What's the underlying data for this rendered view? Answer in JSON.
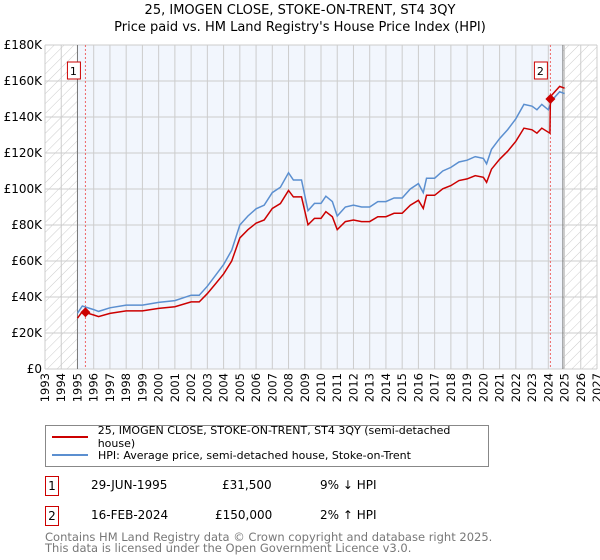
{
  "chart_data": {
    "type": "line",
    "title": "25, IMOGEN CLOSE, STOKE-ON-TRENT, ST4 3QY",
    "subtitle": "Price paid vs. HM Land Registry's House Price Index (HPI)",
    "xlim": [
      1993,
      2027
    ],
    "ylim": [
      0,
      180000
    ],
    "x_ticks": [
      "1993",
      "1994",
      "1995",
      "1996",
      "1997",
      "1998",
      "1999",
      "2000",
      "2001",
      "2002",
      "2003",
      "2004",
      "2005",
      "2006",
      "2007",
      "2008",
      "2009",
      "2010",
      "2011",
      "2012",
      "2013",
      "2014",
      "2015",
      "2016",
      "2017",
      "2018",
      "2019",
      "2020",
      "2021",
      "2022",
      "2023",
      "2024",
      "2025",
      "2026",
      "2027"
    ],
    "y_ticks": [
      "£0",
      "£20K",
      "£40K",
      "£60K",
      "£80K",
      "£100K",
      "£120K",
      "£140K",
      "£160K",
      "£180K"
    ],
    "data_range": [
      1995.0,
      2024.9
    ],
    "series": [
      {
        "name": "25, IMOGEN CLOSE, STOKE-ON-TRENT, ST4 3QY (semi-detached house)",
        "color": "#cc0000",
        "x": [
          1995.0,
          1995.3,
          1996.0,
          1996.3,
          1997,
          1998,
          1999,
          2000,
          2001,
          2002,
          2002.5,
          2003,
          2003.5,
          2004,
          2004.5,
          2005,
          2005.5,
          2006,
          2006.5,
          2007,
          2007.5,
          2008,
          2008.3,
          2008.8,
          2009.2,
          2009.6,
          2010,
          2010.3,
          2010.7,
          2011,
          2011.5,
          2012,
          2012.5,
          2013,
          2013.5,
          2014,
          2014.5,
          2015,
          2015.5,
          2016,
          2016.3,
          2016.5,
          2017,
          2017.5,
          2018,
          2018.5,
          2019,
          2019.5,
          2020,
          2020.2,
          2020.5,
          2021,
          2021.5,
          2022,
          2022.5,
          2023,
          2023.3,
          2023.6,
          2024.1,
          2024.13,
          2024.2,
          2024.7,
          2025
        ],
        "y": [
          28.2,
          31.9,
          30,
          29.1,
          30.9,
          32.3,
          32.3,
          33.7,
          34.6,
          37.3,
          37.3,
          41.9,
          47.3,
          52.8,
          60,
          72.8,
          77.4,
          81,
          82.8,
          89.2,
          91.9,
          99.2,
          95.6,
          95.6,
          80.1,
          83.7,
          83.7,
          87.4,
          84.6,
          77.4,
          81.9,
          82.8,
          81.9,
          81.9,
          84.6,
          84.6,
          86.5,
          86.5,
          91,
          93.7,
          89.2,
          96.5,
          96.5,
          100.1,
          101.9,
          104.7,
          105.6,
          107.4,
          106.5,
          103.7,
          111,
          116.5,
          121,
          126.5,
          133.8,
          132.9,
          131,
          133.8,
          131,
          150,
          152,
          157,
          156
        ]
      },
      {
        "name": "HPI: Average price, semi-detached house, Stoke-on-Trent",
        "color": "#5b8fd0",
        "x": [
          1995.0,
          1995.3,
          1996.0,
          1996.3,
          1997,
          1998,
          1999,
          2000,
          2001,
          2002,
          2002.5,
          2003,
          2003.5,
          2004,
          2004.5,
          2005,
          2005.5,
          2006,
          2006.5,
          2007,
          2007.5,
          2008,
          2008.3,
          2008.8,
          2009.2,
          2009.6,
          2010,
          2010.3,
          2010.7,
          2011,
          2011.5,
          2012,
          2012.5,
          2013,
          2013.5,
          2014,
          2014.5,
          2015,
          2015.5,
          2016,
          2016.3,
          2016.5,
          2017,
          2017.5,
          2018,
          2018.5,
          2019,
          2019.5,
          2020,
          2020.2,
          2020.5,
          2021,
          2021.5,
          2022,
          2022.5,
          2023,
          2023.3,
          2023.6,
          2024,
          2024.2,
          2024.7,
          2025
        ],
        "y": [
          31,
          35,
          33,
          32,
          34,
          35.5,
          35.5,
          37,
          38,
          41,
          41,
          46,
          52,
          58,
          66,
          80,
          85,
          89,
          91,
          98,
          101,
          109,
          105,
          105,
          88,
          92,
          92,
          96,
          93,
          85,
          90,
          91,
          90,
          90,
          93,
          93,
          95,
          95,
          100,
          103,
          98,
          106,
          106,
          110,
          112,
          115,
          116,
          118,
          117,
          114,
          122,
          128,
          133,
          139,
          147,
          146,
          144,
          147,
          144,
          149,
          154,
          153
        ]
      }
    ],
    "y_unit": "thousands GBP",
    "sales": [
      {
        "label": "1",
        "x": 1995.49,
        "y": 31.5
      },
      {
        "label": "2",
        "x": 2024.13,
        "y": 150
      }
    ],
    "legend_position": "below"
  },
  "sales_table": [
    {
      "num": "1",
      "date": "29-JUN-1995",
      "price": "£31,500",
      "hpi": "9% ↓ HPI"
    },
    {
      "num": "2",
      "date": "16-FEB-2024",
      "price": "£150,000",
      "hpi": "2% ↑ HPI"
    }
  ],
  "footer": {
    "line1": "Contains HM Land Registry data © Crown copyright and database right 2025.",
    "line2": "This data is licensed under the Open Government Licence v3.0."
  }
}
